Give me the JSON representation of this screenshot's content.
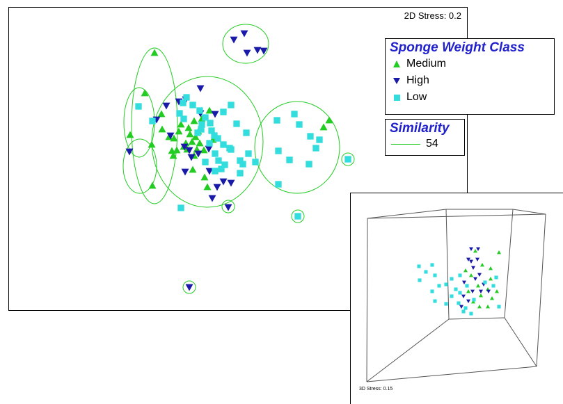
{
  "chart_data": [
    {
      "type": "scatter",
      "title": "",
      "stress_label": "2D Stress: 0.2",
      "legend": {
        "title": "Sponge Weight Class",
        "entries": [
          {
            "name": "Medium",
            "marker": "triangle-up",
            "color": "#22cc22"
          },
          {
            "name": "High",
            "marker": "triangle-down",
            "color": "#1a1aa8"
          },
          {
            "name": "Low",
            "marker": "square",
            "color": "#33dddd"
          }
        ]
      },
      "similarity_legend": {
        "title": "Similarity",
        "value": "54",
        "color": "#22cc22"
      },
      "series": [
        {
          "name": "Medium",
          "points": [
            [
              221,
              75
            ],
            [
              186,
              193
            ],
            [
              207,
              133
            ],
            [
              217,
              207
            ],
            [
              218,
              266
            ],
            [
              231,
              163
            ],
            [
              232,
              185
            ],
            [
              242,
              196
            ],
            [
              246,
              216
            ],
            [
              249,
              198
            ],
            [
              253,
              215
            ],
            [
              256,
              188
            ],
            [
              259,
              178
            ],
            [
              263,
              210
            ],
            [
              266,
              205
            ],
            [
              268,
              214
            ],
            [
              270,
              183
            ],
            [
              272,
              192
            ],
            [
              275,
              203
            ],
            [
              276,
              243
            ],
            [
              278,
              173
            ],
            [
              280,
              196
            ],
            [
              282,
              214
            ],
            [
              284,
              188
            ],
            [
              286,
              205
            ],
            [
              289,
              170
            ],
            [
              292,
              215
            ],
            [
              293,
              254
            ],
            [
              297,
              268
            ],
            [
              300,
              158
            ],
            [
              305,
              200
            ],
            [
              464,
              182
            ],
            [
              472,
              172
            ],
            [
              278,
              223
            ],
            [
              248,
              223
            ]
          ]
        },
        {
          "name": "High",
          "points": [
            [
              335,
              56
            ],
            [
              350,
              47
            ],
            [
              354,
              75
            ],
            [
              369,
              71
            ],
            [
              378,
              72
            ],
            [
              287,
              126
            ],
            [
              238,
              151
            ],
            [
              256,
              145
            ],
            [
              266,
              142
            ],
            [
              287,
              162
            ],
            [
              308,
              163
            ],
            [
              224,
              171
            ],
            [
              185,
              217
            ],
            [
              244,
              194
            ],
            [
              264,
              210
            ],
            [
              274,
              225
            ],
            [
              265,
              246
            ],
            [
              284,
              220
            ],
            [
              299,
              213
            ],
            [
              300,
              245
            ],
            [
              311,
              268
            ],
            [
              320,
              260
            ],
            [
              331,
              262
            ],
            [
              304,
              284
            ],
            [
              271,
              215
            ],
            [
              327,
              297
            ],
            [
              271,
              412
            ]
          ]
        },
        {
          "name": "Low",
          "points": [
            [
              198,
              152
            ],
            [
              218,
              173
            ],
            [
              262,
              147
            ],
            [
              267,
              139
            ],
            [
              257,
              162
            ],
            [
              263,
              170
            ],
            [
              276,
              150
            ],
            [
              286,
              158
            ],
            [
              294,
              168
            ],
            [
              301,
              176
            ],
            [
              289,
              178
            ],
            [
              283,
              190
            ],
            [
              303,
              187
            ],
            [
              312,
              198
            ],
            [
              320,
              207
            ],
            [
              300,
              205
            ],
            [
              308,
              220
            ],
            [
              313,
              230
            ],
            [
              322,
              236
            ],
            [
              317,
              242
            ],
            [
              308,
              245
            ],
            [
              331,
              150
            ],
            [
              320,
              160
            ],
            [
              339,
              177
            ],
            [
              353,
              190
            ],
            [
              356,
              220
            ],
            [
              348,
              235
            ],
            [
              329,
              212
            ],
            [
              344,
              230
            ],
            [
              397,
              172
            ],
            [
              422,
              163
            ],
            [
              429,
              178
            ],
            [
              399,
              216
            ],
            [
              415,
              229
            ],
            [
              445,
              195
            ],
            [
              458,
              200
            ],
            [
              453,
              212
            ],
            [
              443,
              235
            ],
            [
              399,
              264
            ],
            [
              499,
              228
            ],
            [
              427,
              310
            ],
            [
              259,
              298
            ],
            [
              331,
              214
            ],
            [
              294,
              232
            ],
            [
              307,
              194
            ],
            [
              288,
              185
            ],
            [
              366,
              232
            ],
            [
              344,
              248
            ]
          ]
        }
      ],
      "ellipses": [
        {
          "cx": 352,
          "cy": 62,
          "rx": 33,
          "ry": 28,
          "rot": 0
        },
        {
          "cx": 221,
          "cy": 180,
          "rx": 33,
          "ry": 112,
          "rot": 0
        },
        {
          "cx": 199,
          "cy": 175,
          "rx": 22,
          "ry": 50,
          "rot": 0
        },
        {
          "cx": 200,
          "cy": 238,
          "rx": 24,
          "ry": 39,
          "rot": 0
        },
        {
          "cx": 297,
          "cy": 203,
          "rx": 80,
          "ry": 94,
          "rot": 0
        },
        {
          "cx": 426,
          "cy": 211,
          "rx": 61,
          "ry": 66,
          "rot": 0
        },
        {
          "cx": 499,
          "cy": 228,
          "rx": 9,
          "ry": 9,
          "rot": 0
        },
        {
          "cx": 327,
          "cy": 296,
          "rx": 9,
          "ry": 9,
          "rot": 0
        },
        {
          "cx": 427,
          "cy": 310,
          "rx": 9,
          "ry": 9,
          "rot": 0
        },
        {
          "cx": 271,
          "cy": 412,
          "rx": 9,
          "ry": 9,
          "rot": 0
        }
      ]
    },
    {
      "type": "scatter",
      "title": "",
      "stress_label": "3D Stress: 0.15",
      "series": [
        {
          "name": "Medium",
          "points": [
            [
              682,
              360
            ],
            [
              692,
              380
            ],
            [
              676,
              395
            ],
            [
              686,
              410
            ],
            [
              672,
              418
            ],
            [
              690,
              424
            ],
            [
              679,
              433
            ],
            [
              700,
              415
            ],
            [
              706,
              428
            ],
            [
              713,
              418
            ],
            [
              716,
              362
            ],
            [
              704,
              400
            ],
            [
              668,
              388
            ],
            [
              700,
              440
            ],
            [
              688,
              440
            ],
            [
              704,
              385
            ]
          ]
        },
        {
          "name": "High",
          "points": [
            [
              676,
              357
            ],
            [
              686,
              357
            ],
            [
              672,
              372
            ],
            [
              679,
              384
            ],
            [
              688,
              394
            ],
            [
              666,
              405
            ],
            [
              682,
              400
            ],
            [
              694,
              408
            ],
            [
              678,
              418
            ],
            [
              665,
              425
            ],
            [
              672,
              432
            ],
            [
              701,
              418
            ],
            [
              662,
              440
            ],
            [
              690,
              418
            ],
            [
              676,
              375
            ],
            [
              685,
              372
            ]
          ]
        },
        {
          "name": "Low",
          "points": [
            [
              601,
              382
            ],
            [
              611,
              390
            ],
            [
              620,
              380
            ],
            [
              624,
              395
            ],
            [
              602,
              402
            ],
            [
              630,
              410
            ],
            [
              640,
              408
            ],
            [
              660,
              420
            ],
            [
              648,
              425
            ],
            [
              654,
              415
            ],
            [
              670,
              410
            ],
            [
              658,
              435
            ],
            [
              668,
              442
            ],
            [
              680,
              430
            ],
            [
              696,
              405
            ],
            [
              712,
              398
            ],
            [
              624,
              432
            ],
            [
              640,
              436
            ],
            [
              620,
              418
            ],
            [
              665,
              447
            ],
            [
              676,
              450
            ],
            [
              660,
              395
            ],
            [
              648,
              400
            ],
            [
              708,
              410
            ],
            [
              716,
              440
            ]
          ]
        }
      ]
    }
  ]
}
